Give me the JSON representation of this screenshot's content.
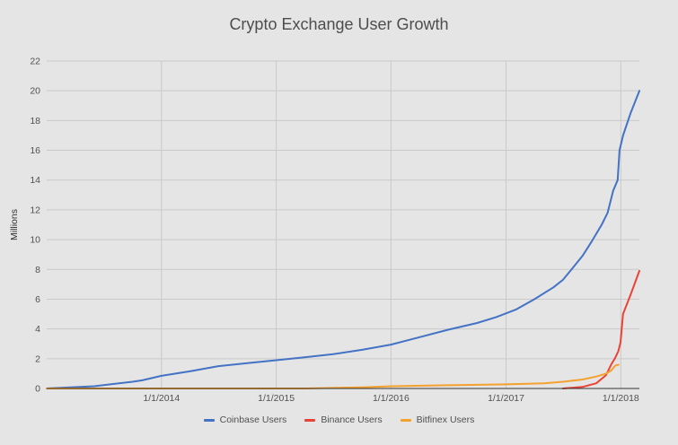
{
  "chart_data": {
    "type": "line",
    "title": "Crypto Exchange User Growth",
    "xlabel": "",
    "ylabel": "Millions",
    "ylim": [
      0,
      22
    ],
    "yticks": [
      0,
      2,
      4,
      6,
      8,
      10,
      12,
      14,
      16,
      18,
      20,
      22
    ],
    "xlim": [
      "2013-01-01",
      "2018-03-01"
    ],
    "xticks": [
      "1/1/2014",
      "1/1/2015",
      "1/1/2016",
      "1/1/2017",
      "1/1/2018"
    ],
    "grid": true,
    "legend_position": "bottom",
    "series": [
      {
        "name": "Coinbase Users",
        "color": "#4472c4",
        "points": [
          [
            "2013-01-01",
            0.0
          ],
          [
            "2013-06-01",
            0.15
          ],
          [
            "2013-10-01",
            0.45
          ],
          [
            "2013-11-01",
            0.55
          ],
          [
            "2014-01-01",
            0.85
          ],
          [
            "2014-04-01",
            1.15
          ],
          [
            "2014-07-01",
            1.5
          ],
          [
            "2014-10-01",
            1.7
          ],
          [
            "2015-01-01",
            1.9
          ],
          [
            "2015-04-01",
            2.1
          ],
          [
            "2015-07-01",
            2.3
          ],
          [
            "2015-10-01",
            2.6
          ],
          [
            "2016-01-01",
            2.95
          ],
          [
            "2016-04-01",
            3.45
          ],
          [
            "2016-07-01",
            3.95
          ],
          [
            "2016-10-01",
            4.4
          ],
          [
            "2016-12-01",
            4.8
          ],
          [
            "2017-02-01",
            5.3
          ],
          [
            "2017-04-01",
            6.0
          ],
          [
            "2017-06-01",
            6.8
          ],
          [
            "2017-07-01",
            7.3
          ],
          [
            "2017-08-01",
            8.1
          ],
          [
            "2017-09-01",
            8.9
          ],
          [
            "2017-10-01",
            9.9
          ],
          [
            "2017-11-01",
            11.0
          ],
          [
            "2017-11-20",
            11.8
          ],
          [
            "2017-12-08",
            13.3
          ],
          [
            "2017-12-22",
            14.0
          ],
          [
            "2017-12-28",
            16.0
          ],
          [
            "2018-01-08",
            17.0
          ],
          [
            "2018-02-01",
            18.5
          ],
          [
            "2018-03-01",
            20.0
          ]
        ]
      },
      {
        "name": "Binance Users",
        "color": "#ea4335",
        "points": [
          [
            "2017-07-01",
            0.0
          ],
          [
            "2017-09-01",
            0.1
          ],
          [
            "2017-10-15",
            0.35
          ],
          [
            "2017-11-15",
            0.9
          ],
          [
            "2017-12-01",
            1.6
          ],
          [
            "2017-12-15",
            2.1
          ],
          [
            "2017-12-24",
            2.5
          ],
          [
            "2017-12-31",
            3.1
          ],
          [
            "2018-01-08",
            5.0
          ],
          [
            "2018-02-01",
            6.3
          ],
          [
            "2018-03-01",
            7.9
          ]
        ]
      },
      {
        "name": "Bitfinex Users",
        "color": "#f4a12e",
        "points": [
          [
            "2013-01-01",
            0.0
          ],
          [
            "2015-04-01",
            0.0
          ],
          [
            "2015-10-01",
            0.08
          ],
          [
            "2016-01-01",
            0.15
          ],
          [
            "2016-07-01",
            0.22
          ],
          [
            "2017-01-01",
            0.28
          ],
          [
            "2017-05-01",
            0.35
          ],
          [
            "2017-07-01",
            0.45
          ],
          [
            "2017-09-01",
            0.6
          ],
          [
            "2017-10-15",
            0.8
          ],
          [
            "2017-11-15",
            1.0
          ],
          [
            "2017-12-01",
            1.2
          ],
          [
            "2017-12-15",
            1.55
          ],
          [
            "2017-12-25",
            1.6
          ]
        ]
      }
    ]
  }
}
